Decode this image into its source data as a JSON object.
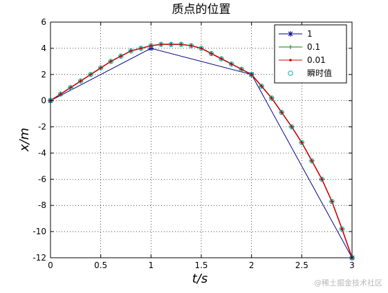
{
  "chart_data": {
    "type": "line",
    "title": "质点的位置",
    "xlabel": "t/s",
    "ylabel": "x/m",
    "xlim": [
      0,
      3
    ],
    "ylim": [
      -12,
      6
    ],
    "xticks": [
      "0",
      "0.5",
      "1",
      "1.5",
      "2",
      "2.5",
      "3"
    ],
    "yticks": [
      "6",
      "4",
      "2",
      "0",
      "-2",
      "-4",
      "-6",
      "-8",
      "-10",
      "-12"
    ],
    "grid": true,
    "legend_position": "top-right",
    "series": [
      {
        "name": "1",
        "color": "#000080",
        "marker": "star",
        "x": [
          0,
          1,
          2,
          3
        ],
        "y": [
          0,
          4,
          2,
          -12
        ]
      },
      {
        "name": "0.1",
        "color": "#008000",
        "marker": "plus",
        "x": [
          0,
          0.1,
          0.2,
          0.3,
          0.4,
          0.5,
          0.6,
          0.7,
          0.8,
          0.9,
          1.0,
          1.1,
          1.2,
          1.3,
          1.4,
          1.5,
          1.6,
          1.7,
          1.8,
          1.9,
          2.0,
          2.1,
          2.2,
          2.3,
          2.4,
          2.5,
          2.6,
          2.7,
          2.8,
          2.9,
          3.0
        ],
        "y": [
          0,
          0.5,
          1,
          1.5,
          2,
          2.5,
          3,
          3.4,
          3.8,
          4,
          4.2,
          4.3,
          4.3,
          4.3,
          4.2,
          4,
          3.6,
          3.2,
          2.8,
          2.4,
          2,
          1.1,
          0.2,
          -0.9,
          -2.0,
          -3.2,
          -4.6,
          -6.0,
          -7.7,
          -9.8,
          -12
        ]
      },
      {
        "name": "0.01",
        "color": "#cc0000",
        "marker": "dot",
        "x": [
          0,
          0.1,
          0.2,
          0.3,
          0.4,
          0.5,
          0.6,
          0.7,
          0.8,
          0.9,
          1.0,
          1.1,
          1.2,
          1.3,
          1.4,
          1.5,
          1.6,
          1.7,
          1.8,
          1.9,
          2.0,
          2.1,
          2.2,
          2.3,
          2.4,
          2.5,
          2.6,
          2.7,
          2.8,
          2.9,
          3.0
        ],
        "y": [
          0,
          0.5,
          1,
          1.5,
          2,
          2.5,
          3,
          3.4,
          3.8,
          4,
          4.2,
          4.3,
          4.3,
          4.3,
          4.2,
          4,
          3.6,
          3.2,
          2.8,
          2.4,
          2,
          1.1,
          0.2,
          -0.9,
          -2.0,
          -3.2,
          -4.6,
          -6.0,
          -7.7,
          -9.8,
          -12
        ]
      },
      {
        "name": "瞬时值",
        "color": "#00b0b0",
        "marker": "circle",
        "x": [
          0,
          0.1,
          0.2,
          0.3,
          0.4,
          0.5,
          0.6,
          0.7,
          0.8,
          0.9,
          1.0,
          1.1,
          1.2,
          1.3,
          1.4,
          1.5,
          1.6,
          1.7,
          1.8,
          1.9,
          2.0,
          2.1,
          2.2,
          2.3,
          2.4,
          2.5,
          2.6,
          2.7,
          2.8,
          2.9,
          3.0
        ],
        "y": [
          0,
          0.5,
          1,
          1.5,
          2,
          2.5,
          3,
          3.4,
          3.8,
          4,
          4.2,
          4.3,
          4.3,
          4.3,
          4.2,
          4,
          3.6,
          3.2,
          2.8,
          2.4,
          2,
          1.1,
          0.2,
          -0.9,
          -2.0,
          -3.2,
          -4.6,
          -6.0,
          -7.7,
          -9.8,
          -12
        ]
      }
    ]
  },
  "watermark": "@稀土掘金技术社区"
}
